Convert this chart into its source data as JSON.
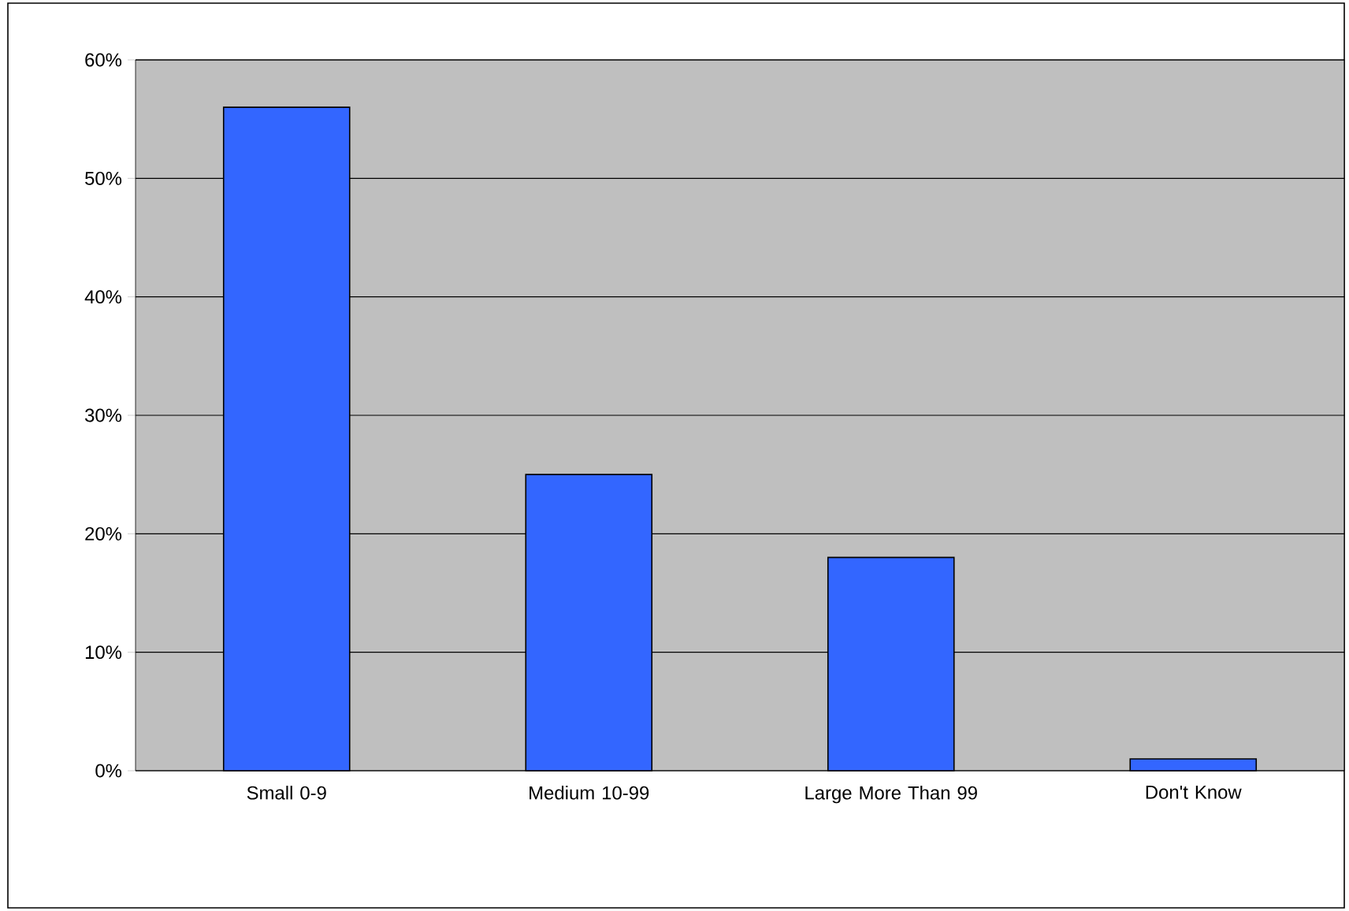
{
  "chart_data": {
    "type": "bar",
    "categories": [
      "Small 0-9",
      "Medium 10-99",
      "Large More Than 99",
      "Don't Know"
    ],
    "values": [
      56,
      25,
      18,
      1
    ],
    "color": "#3366ff",
    "ylim": [
      0,
      60
    ],
    "yticks": [
      {
        "value": 0,
        "label": "0%"
      },
      {
        "value": 10,
        "label": "10%"
      },
      {
        "value": 20,
        "label": "20%"
      },
      {
        "value": 30,
        "label": "30%"
      },
      {
        "value": 40,
        "label": "40%"
      },
      {
        "value": 50,
        "label": "50%"
      },
      {
        "value": 60,
        "label": "60%"
      }
    ],
    "grid": "y"
  }
}
